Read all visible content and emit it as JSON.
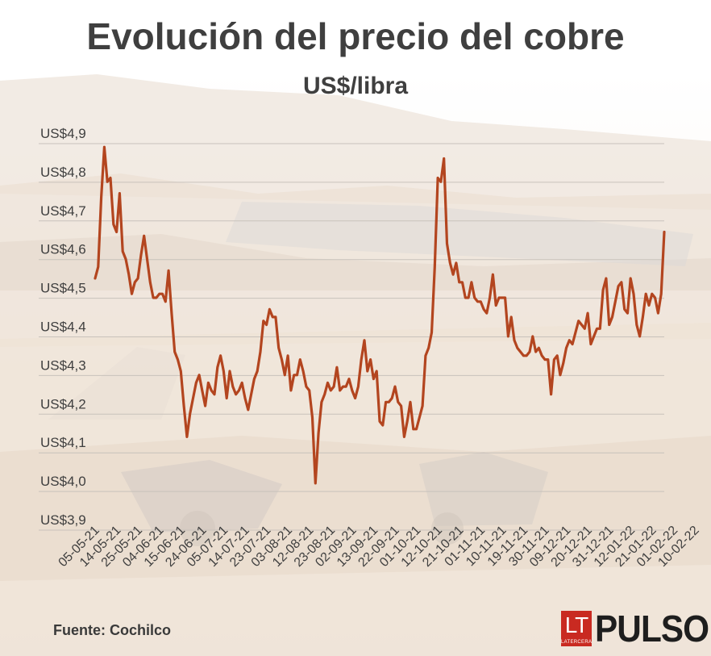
{
  "header": {
    "title": "Evolución del precio del cobre",
    "subtitle": "US$/libra"
  },
  "footer": {
    "source": "Fuente: Cochilco",
    "logo_lt": "LT",
    "logo_lt_small": "LATERCERA",
    "logo_brand": "PULSO"
  },
  "colors": {
    "line": "#b3451f",
    "grid": "#c8c2bb",
    "text": "#3f3f3f",
    "logo_red": "#c92a21"
  },
  "chart_data": {
    "type": "line",
    "title": "Evolución del precio del cobre",
    "subtitle": "US$/libra",
    "xlabel": "",
    "ylabel": "",
    "ylim": [
      3.9,
      4.9
    ],
    "grid": true,
    "y_ticks": [
      3.9,
      4.0,
      4.1,
      4.2,
      4.3,
      4.4,
      4.5,
      4.6,
      4.7,
      4.8,
      4.9
    ],
    "y_tick_labels": [
      "US$3,9",
      "US$4,0",
      "US$4,1",
      "US$4,2",
      "US$4,3",
      "US$4,4",
      "US$4,5",
      "US$4,6",
      "US$4,7",
      "US$4,8",
      "US$4,9"
    ],
    "x_tick_labels": [
      "05-05-21",
      "14-05-21",
      "25-05-21",
      "04-06-21",
      "15-06-21",
      "24-06-21",
      "05-07-21",
      "14-07-21",
      "23-07-21",
      "03-08-21",
      "12-08-21",
      "23-08-21",
      "02-09-21",
      "13-09-21",
      "22-09-21",
      "01-10-21",
      "12-10-21",
      "21-10-21",
      "01-11-21",
      "10-11-21",
      "19-11-21",
      "30-11-21",
      "09-12-21",
      "20-12-21",
      "31-12-21",
      "12-01-22",
      "21-01-22",
      "01-02-22",
      "10-02-22"
    ],
    "x_tick_index": [
      0,
      7,
      14,
      21,
      28,
      35,
      42,
      49,
      56,
      63,
      70,
      77,
      84,
      91,
      98,
      105,
      112,
      119,
      126,
      133,
      140,
      147,
      154,
      161,
      168,
      175,
      182,
      189,
      196
    ],
    "series": [
      {
        "values": [
          4.52,
          4.55,
          4.73,
          4.86,
          4.77,
          4.78,
          4.66,
          4.64,
          4.74,
          4.59,
          4.57,
          4.53,
          4.48,
          4.51,
          4.52,
          4.58,
          4.63,
          4.57,
          4.51,
          4.47,
          4.47,
          4.48,
          4.48,
          4.46,
          4.54,
          4.43,
          4.33,
          4.31,
          4.28,
          4.19,
          4.11,
          4.17,
          4.21,
          4.25,
          4.27,
          4.23,
          4.19,
          4.25,
          4.23,
          4.22,
          4.29,
          4.32,
          4.28,
          4.21,
          4.28,
          4.24,
          4.22,
          4.23,
          4.25,
          4.21,
          4.18,
          4.22,
          4.26,
          4.28,
          4.33,
          4.41,
          4.4,
          4.44,
          4.42,
          4.42,
          4.34,
          4.31,
          4.27,
          4.32,
          4.23,
          4.27,
          4.27,
          4.31,
          4.28,
          4.24,
          4.23,
          4.16,
          3.99,
          4.12,
          4.2,
          4.22,
          4.25,
          4.23,
          4.24,
          4.29,
          4.23,
          4.24,
          4.24,
          4.26,
          4.23,
          4.21,
          4.24,
          4.31,
          4.36,
          4.28,
          4.31,
          4.26,
          4.28,
          4.15,
          4.14,
          4.2,
          4.2,
          4.21,
          4.24,
          4.2,
          4.19,
          4.11,
          4.15,
          4.2,
          4.13,
          4.13,
          4.16,
          4.19,
          4.32,
          4.34,
          4.38,
          4.55,
          4.78,
          4.77,
          4.83,
          4.61,
          4.56,
          4.53,
          4.56,
          4.51,
          4.51,
          4.47,
          4.47,
          4.51,
          4.47,
          4.46,
          4.46,
          4.44,
          4.43,
          4.47,
          4.53,
          4.45,
          4.47,
          4.47,
          4.47,
          4.37,
          4.42,
          4.36,
          4.34,
          4.33,
          4.32,
          4.32,
          4.33,
          4.37,
          4.33,
          4.34,
          4.32,
          4.31,
          4.31,
          4.22,
          4.31,
          4.32,
          4.27,
          4.3,
          4.34,
          4.36,
          4.35,
          4.38,
          4.41,
          4.4,
          4.39,
          4.43,
          4.35,
          4.37,
          4.39,
          4.39,
          4.49,
          4.52,
          4.4,
          4.42,
          4.46,
          4.5,
          4.51,
          4.44,
          4.43,
          4.52,
          4.48,
          4.4,
          4.37,
          4.42,
          4.48,
          4.45,
          4.48,
          4.47,
          4.43,
          4.48,
          4.64
        ]
      }
    ]
  }
}
